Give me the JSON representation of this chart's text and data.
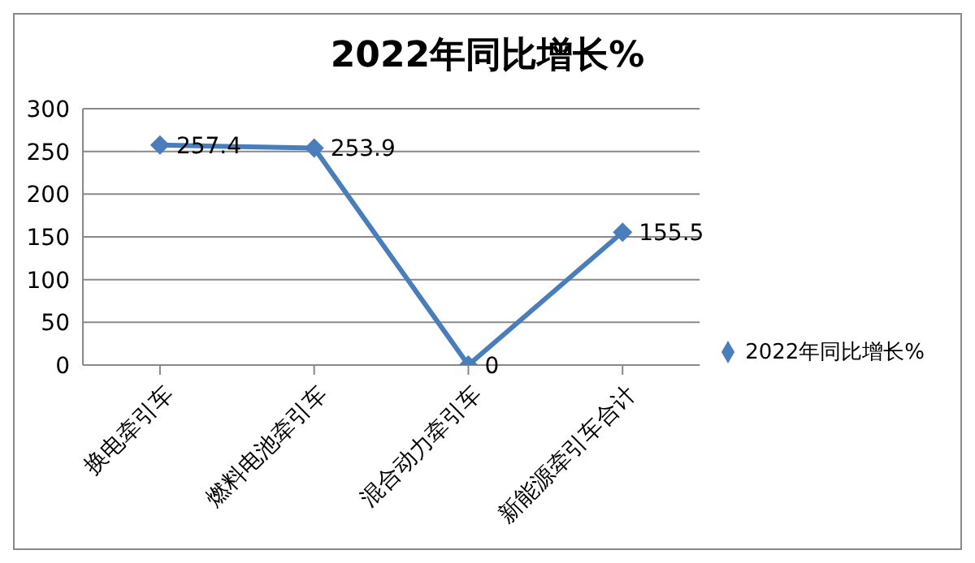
{
  "chart_data": {
    "type": "line",
    "title": "2022年同比增长%",
    "categories": [
      "换电牵引车",
      "燃料电池牵引车",
      "混合动力牵引车",
      "新能源牵引车合计"
    ],
    "series": [
      {
        "name": "2022年同比增长%",
        "color": "#4a7ebb",
        "values": [
          257.4,
          253.9,
          0,
          155.5
        ]
      }
    ],
    "ylim": [
      0,
      300
    ],
    "yticks": [
      0,
      50,
      100,
      150,
      200,
      250,
      300
    ],
    "grid": "y",
    "legend": "right",
    "marker": "diamond",
    "line_style": "solid",
    "data_labels": true
  }
}
